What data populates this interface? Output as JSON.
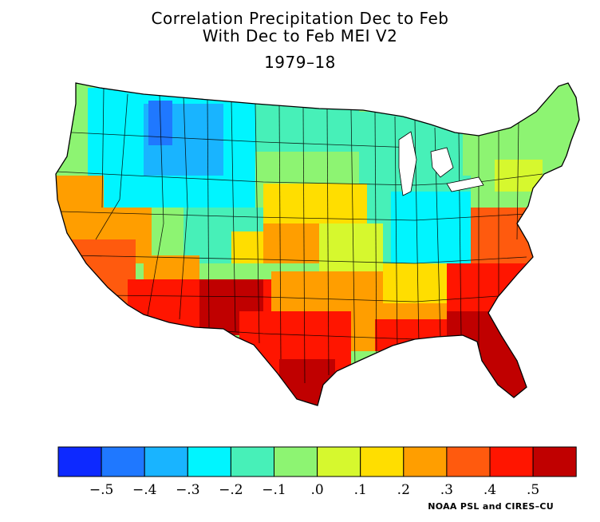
{
  "title_line1": "Correlation Precipitation Dec to Feb",
  "title_line2": "With Dec to Feb MEI V2",
  "period": "1979–18",
  "credit": "NOAA PSL and CIRES–CU",
  "legend": {
    "colors": [
      "#0d29ff",
      "#1f78ff",
      "#19b4ff",
      "#00f5ff",
      "#47f0b8",
      "#8df472",
      "#d6f82e",
      "#ffde00",
      "#ff9e00",
      "#ff5a0e",
      "#ff1500",
      "#c00000"
    ],
    "labels": [
      "−.5",
      "−.4",
      "−.3",
      "−.2",
      "−.1",
      ".0",
      ".1",
      ".2",
      ".3",
      ".4",
      ".5"
    ]
  }
}
